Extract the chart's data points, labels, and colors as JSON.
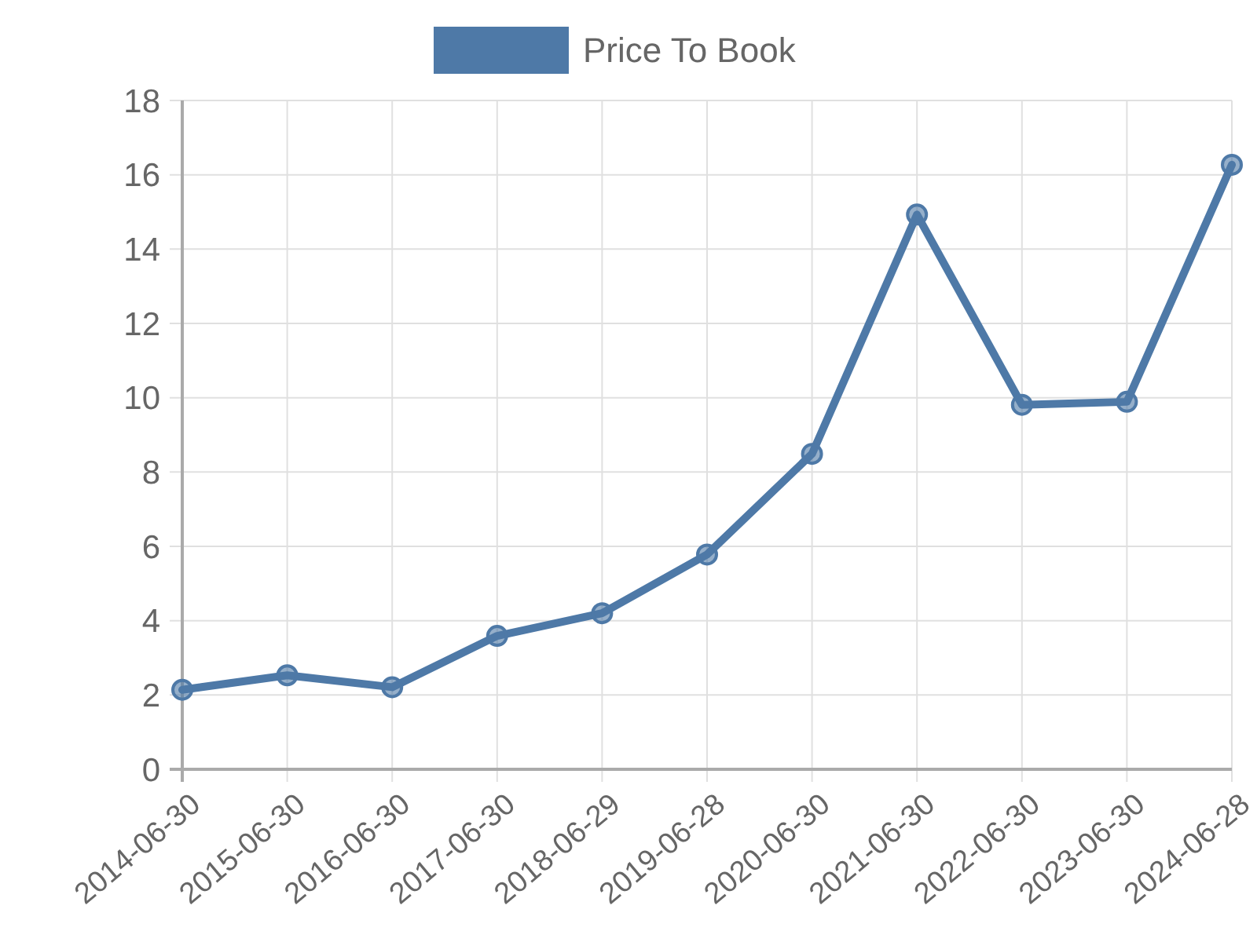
{
  "chart_data": {
    "type": "line",
    "categories": [
      "2014-06-30",
      "2015-06-30",
      "2016-06-30",
      "2017-06-30",
      "2018-06-29",
      "2019-06-28",
      "2020-06-30",
      "2021-06-30",
      "2022-06-30",
      "2023-06-30",
      "2024-06-28"
    ],
    "series": [
      {
        "name": "Price To Book",
        "color": "#4e79a7",
        "values": [
          2.14,
          2.53,
          2.21,
          3.59,
          4.2,
          5.78,
          8.49,
          14.93,
          9.81,
          9.89,
          16.27
        ]
      }
    ],
    "ylim": [
      0,
      18
    ],
    "yticks": [
      0,
      2,
      4,
      6,
      8,
      10,
      12,
      14,
      16,
      18
    ],
    "grid": true,
    "legend": "top",
    "marker": "circle",
    "line_style": "solid"
  }
}
